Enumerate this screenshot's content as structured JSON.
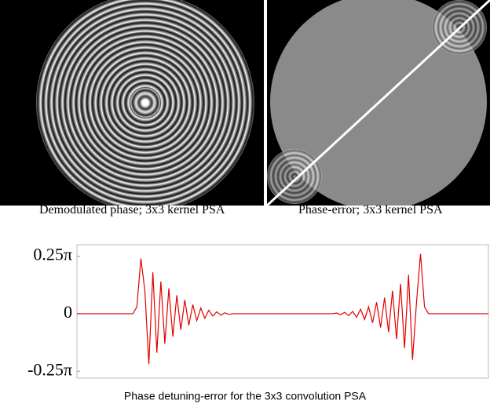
{
  "figure": {
    "caption_left": "Demodulated phase; 3x3 kernel PSA",
    "caption_right": "Phase-error; 3x3 kernel PSA"
  },
  "chart_data": {
    "type": "line",
    "title": "Phase detuning-error for the 3x3 convolution PSA",
    "ylim": [
      -0.28,
      0.3
    ],
    "yticks": [
      {
        "value": 0.25,
        "label": "0.25π"
      },
      0,
      {
        "value": -0.25,
        "label": "-0.25π"
      }
    ],
    "series": [
      {
        "color": "#e00000",
        "values": [
          0,
          0,
          0,
          0,
          0,
          0,
          0,
          0,
          0,
          0,
          0,
          0,
          0,
          0,
          0,
          0.03,
          0.24,
          0.1,
          -0.22,
          0.18,
          -0.17,
          0.14,
          -0.13,
          0.11,
          -0.1,
          0.08,
          -0.07,
          0.06,
          -0.05,
          0.04,
          -0.03,
          0.025,
          -0.02,
          0.015,
          -0.01,
          0.008,
          -0.006,
          0.004,
          -0.003,
          0,
          0,
          0,
          0,
          0,
          0,
          0,
          0,
          0,
          0,
          0,
          0,
          0,
          0,
          0,
          0,
          0,
          0,
          0,
          0,
          0,
          0,
          0,
          0,
          0,
          0,
          0.003,
          -0.004,
          0.006,
          -0.008,
          0.01,
          -0.015,
          0.02,
          -0.025,
          0.03,
          -0.04,
          0.05,
          -0.06,
          0.07,
          -0.08,
          0.1,
          -0.11,
          0.13,
          -0.15,
          0.17,
          -0.2,
          0.05,
          0.26,
          0.03,
          0,
          0,
          0,
          0,
          0,
          0,
          0,
          0,
          0,
          0,
          0,
          0,
          0,
          0,
          0,
          0
        ]
      }
    ]
  }
}
